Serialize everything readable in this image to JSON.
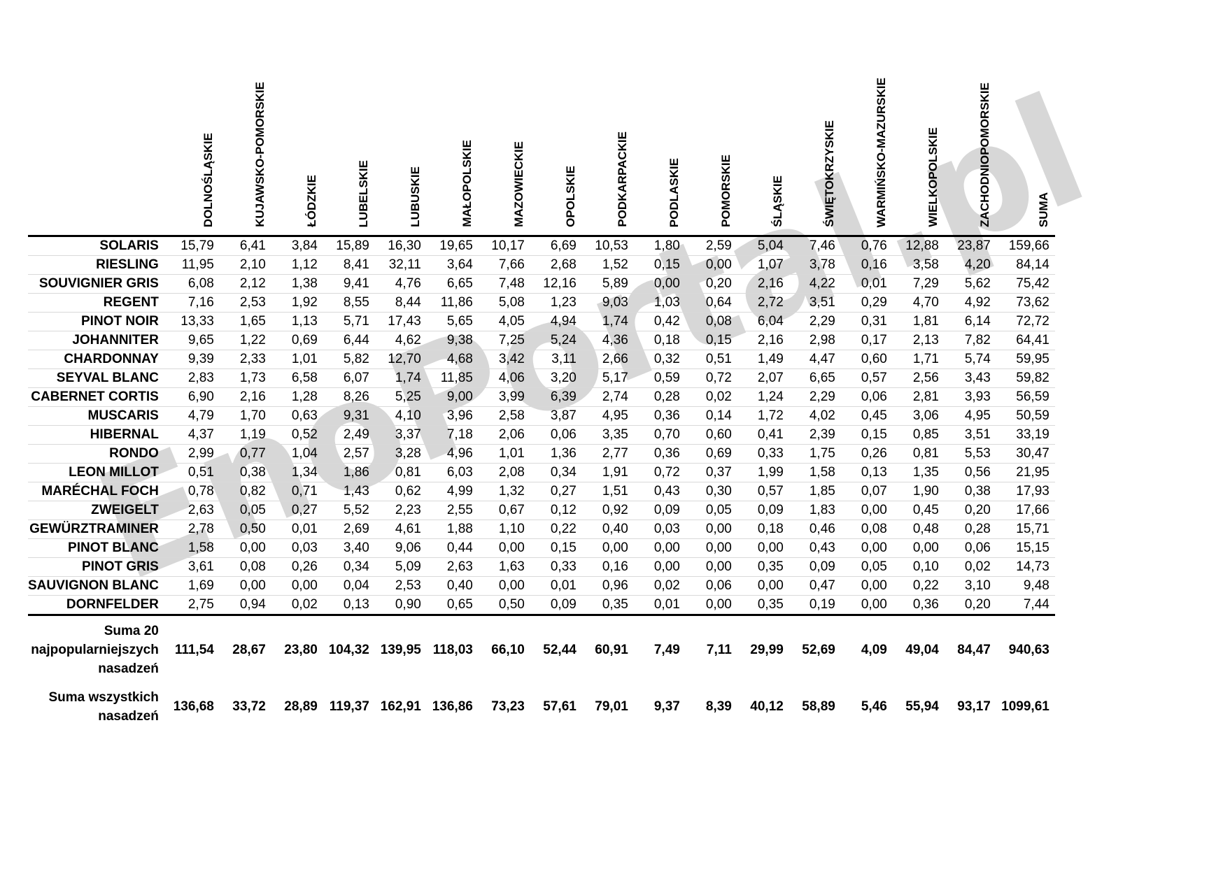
{
  "page": {
    "background": "#ffffff",
    "watermark": "EnoPortal.pl",
    "watermark_color": "#d7d7d7",
    "grid_line_color": "#d9d9d9",
    "rule_color": "#000000"
  },
  "chart_data": {
    "type": "table",
    "title": "",
    "decimal_separator": ",",
    "columns": [
      "DOLNOŚLĄSKIE",
      "KUJAWSKO-POMORSKIE",
      "ŁÓDZKIE",
      "LUBELSKIE",
      "LUBUSKIE",
      "MAŁOPOLSKIE",
      "MAZOWIECKIE",
      "OPOLSKIE",
      "PODKARPACKIE",
      "PODLASKIE",
      "POMORSKIE",
      "ŚLĄSKIE",
      "ŚWIĘTOKRZYSKIE",
      "WARMIŃSKO-MAZURSKIE",
      "WIELKOPOLSKIE",
      "ZACHODNIOPOMORSKIE",
      "SUMA"
    ],
    "rows": [
      {
        "name": "SOLARIS",
        "values": [
          15.79,
          6.41,
          3.84,
          15.89,
          16.3,
          19.65,
          10.17,
          6.69,
          10.53,
          1.8,
          2.59,
          5.04,
          7.46,
          0.76,
          12.88,
          23.87,
          159.66
        ]
      },
      {
        "name": "RIESLING",
        "values": [
          11.95,
          2.1,
          1.12,
          8.41,
          32.11,
          3.64,
          7.66,
          2.68,
          1.52,
          0.15,
          0.0,
          1.07,
          3.78,
          0.16,
          3.58,
          4.2,
          84.14
        ]
      },
      {
        "name": "SOUVIGNIER GRIS",
        "values": [
          6.08,
          2.12,
          1.38,
          9.41,
          4.76,
          6.65,
          7.48,
          12.16,
          5.89,
          0.0,
          0.2,
          2.16,
          4.22,
          0.01,
          7.29,
          5.62,
          75.42
        ]
      },
      {
        "name": "REGENT",
        "values": [
          7.16,
          2.53,
          1.92,
          8.55,
          8.44,
          11.86,
          5.08,
          1.23,
          9.03,
          1.03,
          0.64,
          2.72,
          3.51,
          0.29,
          4.7,
          4.92,
          73.62
        ]
      },
      {
        "name": "PINOT NOIR",
        "values": [
          13.33,
          1.65,
          1.13,
          5.71,
          17.43,
          5.65,
          4.05,
          4.94,
          1.74,
          0.42,
          0.08,
          6.04,
          2.29,
          0.31,
          1.81,
          6.14,
          72.72
        ]
      },
      {
        "name": "JOHANNITER",
        "values": [
          9.65,
          1.22,
          0.69,
          6.44,
          4.62,
          9.38,
          7.25,
          5.24,
          4.36,
          0.18,
          0.15,
          2.16,
          2.98,
          0.17,
          2.13,
          7.82,
          64.41
        ]
      },
      {
        "name": "CHARDONNAY",
        "values": [
          9.39,
          2.33,
          1.01,
          5.82,
          12.7,
          4.68,
          3.42,
          3.11,
          2.66,
          0.32,
          0.51,
          1.49,
          4.47,
          0.6,
          1.71,
          5.74,
          59.95
        ]
      },
      {
        "name": "SEYVAL BLANC",
        "values": [
          2.83,
          1.73,
          6.58,
          6.07,
          1.74,
          11.85,
          4.06,
          3.2,
          5.17,
          0.59,
          0.72,
          2.07,
          6.65,
          0.57,
          2.56,
          3.43,
          59.82
        ]
      },
      {
        "name": "CABERNET CORTIS",
        "values": [
          6.9,
          2.16,
          1.28,
          8.26,
          5.25,
          9.0,
          3.99,
          6.39,
          2.74,
          0.28,
          0.02,
          1.24,
          2.29,
          0.06,
          2.81,
          3.93,
          56.59
        ]
      },
      {
        "name": "MUSCARIS",
        "values": [
          4.79,
          1.7,
          0.63,
          9.31,
          4.1,
          3.96,
          2.58,
          3.87,
          4.95,
          0.36,
          0.14,
          1.72,
          4.02,
          0.45,
          3.06,
          4.95,
          50.59
        ]
      },
      {
        "name": "HIBERNAL",
        "values": [
          4.37,
          1.19,
          0.52,
          2.49,
          3.37,
          7.18,
          2.06,
          0.06,
          3.35,
          0.7,
          0.6,
          0.41,
          2.39,
          0.15,
          0.85,
          3.51,
          33.19
        ]
      },
      {
        "name": "RONDO",
        "values": [
          2.99,
          0.77,
          1.04,
          2.57,
          3.28,
          4.96,
          1.01,
          1.36,
          2.77,
          0.36,
          0.69,
          0.33,
          1.75,
          0.26,
          0.81,
          5.53,
          30.47
        ]
      },
      {
        "name": "LEON MILLOT",
        "values": [
          0.51,
          0.38,
          1.34,
          1.86,
          0.81,
          6.03,
          2.08,
          0.34,
          1.91,
          0.72,
          0.37,
          1.99,
          1.58,
          0.13,
          1.35,
          0.56,
          21.95
        ]
      },
      {
        "name": "MARÉCHAL FOCH",
        "values": [
          0.78,
          0.82,
          0.71,
          1.43,
          0.62,
          4.99,
          1.32,
          0.27,
          1.51,
          0.43,
          0.3,
          0.57,
          1.85,
          0.07,
          1.9,
          0.38,
          17.93
        ]
      },
      {
        "name": "ZWEIGELT",
        "values": [
          2.63,
          0.05,
          0.27,
          5.52,
          2.23,
          2.55,
          0.67,
          0.12,
          0.92,
          0.09,
          0.05,
          0.09,
          1.83,
          0.0,
          0.45,
          0.2,
          17.66
        ]
      },
      {
        "name": "GEWÜRZTRAMINER",
        "values": [
          2.78,
          0.5,
          0.01,
          2.69,
          4.61,
          1.88,
          1.1,
          0.22,
          0.4,
          0.03,
          0.0,
          0.18,
          0.46,
          0.08,
          0.48,
          0.28,
          15.71
        ]
      },
      {
        "name": "PINOT BLANC",
        "values": [
          1.58,
          0.0,
          0.03,
          3.4,
          9.06,
          0.44,
          0.0,
          0.15,
          0.0,
          0.0,
          0.0,
          0.0,
          0.43,
          0.0,
          0.0,
          0.06,
          15.15
        ]
      },
      {
        "name": "PINOT GRIS",
        "values": [
          3.61,
          0.08,
          0.26,
          0.34,
          5.09,
          2.63,
          1.63,
          0.33,
          0.16,
          0.0,
          0.0,
          0.35,
          0.09,
          0.05,
          0.1,
          0.02,
          14.73
        ]
      },
      {
        "name": "SAUVIGNON BLANC",
        "values": [
          1.69,
          0.0,
          0.0,
          0.04,
          2.53,
          0.4,
          0.0,
          0.01,
          0.96,
          0.02,
          0.06,
          0.0,
          0.47,
          0.0,
          0.22,
          3.1,
          9.48
        ]
      },
      {
        "name": "DORNFELDER",
        "values": [
          2.75,
          0.94,
          0.02,
          0.13,
          0.9,
          0.65,
          0.5,
          0.09,
          0.35,
          0.01,
          0.0,
          0.35,
          0.19,
          0.0,
          0.36,
          0.2,
          7.44
        ]
      }
    ],
    "summary_rows": [
      {
        "name": "Suma 20 najpopularniejszych nasadzeń",
        "values": [
          111.54,
          28.67,
          23.8,
          104.32,
          139.95,
          118.03,
          66.1,
          52.44,
          60.91,
          7.49,
          7.11,
          29.99,
          52.69,
          4.09,
          49.04,
          84.47,
          940.63
        ]
      },
      {
        "name": "Suma wszystkich nasadzeń",
        "values": [
          136.68,
          33.72,
          28.89,
          119.37,
          162.91,
          136.86,
          73.23,
          57.61,
          79.01,
          9.37,
          8.39,
          40.12,
          58.89,
          5.46,
          55.94,
          93.17,
          1099.61
        ]
      }
    ]
  }
}
